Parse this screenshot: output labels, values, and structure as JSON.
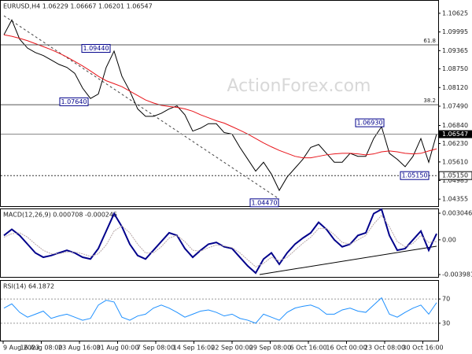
{
  "chart_data": [
    {
      "type": "line",
      "title": "EURUSD,H4  1.06229 1.06667 1.06201 1.06547",
      "watermark": "ActionForex.com",
      "ylim": [
        1.0412,
        1.1102
      ],
      "yticks": [
        1.10625,
        1.09995,
        1.09365,
        {
          "value": 1.0875,
          "label": "1.08750"
        },
        {
          "value": 1.0812,
          "label": "1.08120"
        },
        {
          "value": 1.0749,
          "label": "1.07490"
        },
        {
          "value": 1.0684,
          "label": "1.06840"
        },
        {
          "value": 1.0623,
          "label": "1.06230"
        },
        {
          "value": 1.0561,
          "label": "1.05610"
        },
        1.04985,
        1.04355
      ],
      "series": [
        {
          "color": "#000000",
          "values": [
            1.099,
            1.104,
            1.0975,
            1.0945,
            1.093,
            1.092,
            1.0905,
            1.089,
            1.088,
            1.086,
            1.081,
            1.0775,
            1.079,
            1.088,
            1.0935,
            1.085,
            1.08,
            1.074,
            1.0715,
            1.0715,
            1.0725,
            1.074,
            1.075,
            1.072,
            1.0665,
            1.0675,
            1.069,
            1.069,
            1.066,
            1.0655,
            1.061,
            1.057,
            1.053,
            1.056,
            1.052,
            1.0465,
            1.051,
            1.054,
            1.057,
            1.061,
            1.062,
            1.059,
            1.056,
            1.056,
            1.059,
            1.058,
            1.058,
            1.064,
            1.068,
            1.059,
            1.057,
            1.0545,
            1.058,
            1.064,
            1.056,
            1.0655
          ]
        },
        {
          "color": "#e8141a",
          "values": [
            1.099,
            1.0985,
            1.0978,
            1.097,
            1.096,
            1.095,
            1.094,
            1.0928,
            1.0915,
            1.09,
            1.0885,
            1.0868,
            1.085,
            1.0835,
            1.0825,
            1.0815,
            1.08,
            1.0785,
            1.077,
            1.076,
            1.0752,
            1.0748,
            1.0745,
            1.074,
            1.0732,
            1.072,
            1.071,
            1.07,
            1.0692,
            1.068,
            1.0668,
            1.0655,
            1.064,
            1.0625,
            1.0612,
            1.06,
            1.059,
            1.058,
            1.0575,
            1.0575,
            1.058,
            1.0585,
            1.0588,
            1.059,
            1.059,
            1.0588,
            1.0585,
            1.0588,
            1.0595,
            1.0598,
            1.0595,
            1.059,
            1.0588,
            1.059,
            1.0598,
            1.0605
          ]
        }
      ],
      "price_labels": [
        {
          "value": 1.0944,
          "label": "1.09440"
        },
        {
          "value": 1.0764,
          "label": "1.07640"
        },
        {
          "value": 1.0693,
          "label": "1.06930"
        },
        {
          "value": 1.0447,
          "label": "1.04470"
        },
        {
          "value": 1.0515,
          "label": "1.05150"
        }
      ],
      "fib_levels": [
        {
          "price": 1.0956,
          "label": "61.8"
        },
        {
          "price": 1.0754,
          "label": "38.2"
        }
      ],
      "last_price": 1.06547,
      "support": {
        "value": 1.0515,
        "label": "1.05150"
      }
    },
    {
      "type": "line",
      "title": "MACD(12,26,9) 0.000708 -0.000245",
      "ylim": [
        -0.00425,
        0.00359
      ],
      "yticks": [
        0.003046,
        {
          "value": 0,
          "label": "0.00"
        },
        -0.003981
      ],
      "series": [
        {
          "color": "#00008b",
          "values": [
            0.0005,
            0.0012,
            0.0005,
            -0.0005,
            -0.0015,
            -0.002,
            -0.0018,
            -0.0015,
            -0.0012,
            -0.0015,
            -0.002,
            -0.0022,
            -0.001,
            0.001,
            0.003,
            0.0015,
            -0.0005,
            -0.0018,
            -0.0022,
            -0.0012,
            -0.0002,
            0.0008,
            0.0005,
            -0.001,
            -0.002,
            -0.0012,
            -0.0005,
            -0.0003,
            -0.0008,
            -0.001,
            -0.002,
            -0.003,
            -0.0038,
            -0.0022,
            -0.0015,
            -0.0028,
            -0.0015,
            -0.0005,
            0.0002,
            0.0008,
            0.002,
            0.0012,
            0.0,
            -0.0008,
            -0.0005,
            0.0005,
            0.0008,
            0.003,
            0.0035,
            0.0005,
            -0.0012,
            -0.001,
            0.0,
            0.001,
            -0.0012,
            0.0007
          ]
        },
        {
          "color": "#b8a8a8",
          "values": [
            0.0003,
            0.0007,
            0.0008,
            0.0003,
            -0.0005,
            -0.0012,
            -0.0016,
            -0.0016,
            -0.0014,
            -0.0014,
            -0.0016,
            -0.0019,
            -0.0016,
            -0.0006,
            0.001,
            0.0016,
            0.0008,
            -0.0005,
            -0.0015,
            -0.0015,
            -0.0008,
            0.0002,
            0.0005,
            -0.0002,
            -0.0012,
            -0.0013,
            -0.0009,
            -0.0006,
            -0.0007,
            -0.0009,
            -0.0015,
            -0.0023,
            -0.0031,
            -0.0027,
            -0.002,
            -0.0024,
            -0.002,
            -0.0012,
            -0.0004,
            0.0003,
            0.0013,
            0.0013,
            0.0006,
            -0.0003,
            -0.0005,
            0.0,
            0.0005,
            0.0018,
            0.0028,
            0.0015,
            -0.0002,
            -0.0008,
            -0.0004,
            0.0005,
            -0.0003,
            -0.0002
          ]
        }
      ]
    },
    {
      "type": "line",
      "title": "RSI(14) 64.1872",
      "ylim": [
        0,
        100
      ],
      "yticks": [
        70,
        30
      ],
      "grid": true,
      "series": [
        {
          "color": "#1e90ff",
          "values": [
            55,
            62,
            48,
            40,
            45,
            50,
            38,
            42,
            45,
            40,
            35,
            38,
            60,
            68,
            65,
            40,
            35,
            42,
            45,
            55,
            60,
            55,
            48,
            40,
            45,
            50,
            52,
            48,
            42,
            45,
            38,
            35,
            30,
            45,
            40,
            35,
            48,
            55,
            58,
            60,
            55,
            45,
            45,
            52,
            55,
            50,
            48,
            60,
            72,
            45,
            40,
            48,
            55,
            60,
            45,
            64
          ]
        }
      ],
      "x_tick_labels": [
        "9 Aug 2023",
        "16 Aug 08:00",
        "23 Aug 16:00",
        "31 Aug 00:00",
        "7 Sep 08:00",
        "14 Sep 16:00",
        "22 Sep 00:00",
        "29 Sep 08:00",
        "6 Oct 16:00",
        "16 Oct 00:00",
        "23 Oct 08:00",
        "30 Oct 16:00"
      ]
    }
  ]
}
